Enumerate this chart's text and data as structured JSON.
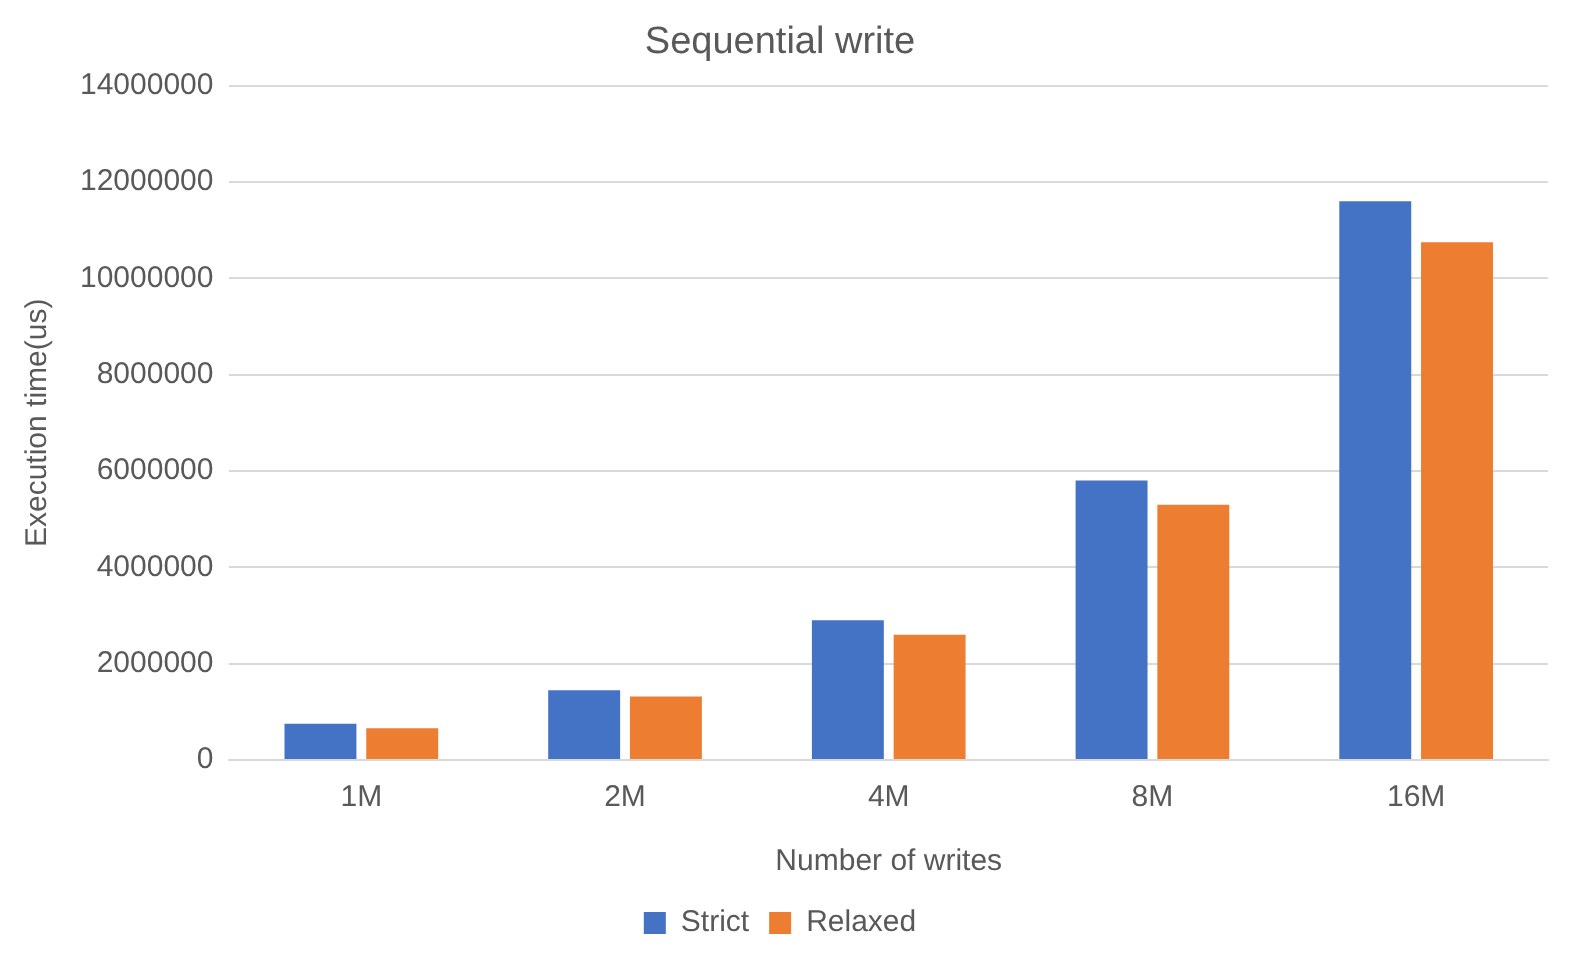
{
  "chart_data": {
    "type": "bar",
    "title": "Sequential write",
    "xlabel": "Number of writes",
    "ylabel": "Execution time(us)",
    "categories": [
      "1M",
      "2M",
      "4M",
      "8M",
      "16M"
    ],
    "series": [
      {
        "name": "Strict",
        "color": "#4472c4",
        "values": [
          750000,
          1450000,
          2900000,
          5800000,
          11600000
        ]
      },
      {
        "name": "Relaxed",
        "color": "#ed7d31",
        "values": [
          660000,
          1320000,
          2600000,
          5300000,
          10750000
        ]
      }
    ],
    "ylim": [
      0,
      14000000
    ],
    "yticks": [
      0,
      2000000,
      4000000,
      6000000,
      8000000,
      10000000,
      12000000,
      14000000
    ],
    "grid": "y",
    "legend": "bottom"
  }
}
